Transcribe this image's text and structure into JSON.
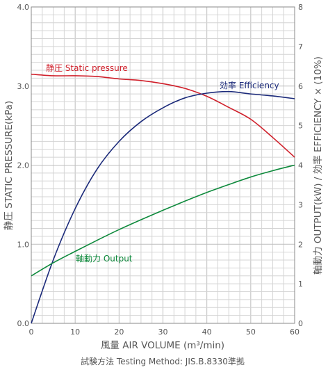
{
  "chart_data": {
    "type": "line",
    "xlabel": "風量 AIR VOLUME (m³/min)",
    "ylabel_left": "静圧 STATIC PRESSURE(kPa)",
    "ylabel_right": "軸動力 OUTPUT(kW) / 効率 EFFICIENCY × (10%)",
    "footnote": "試験方法 Testing Method: JIS.B.8330準拠",
    "xlim": [
      0,
      60
    ],
    "ylim_left": [
      0,
      4
    ],
    "ylim_right": [
      0,
      8
    ],
    "x_ticks": [
      "0",
      "10",
      "20",
      "30",
      "40",
      "50",
      "60"
    ],
    "y_left_ticks": [
      "0.0",
      "1.0",
      "2.0",
      "3.0",
      "4.0"
    ],
    "y_right_ticks": [
      "0",
      "1",
      "2",
      "3",
      "4",
      "5",
      "6",
      "7",
      "8"
    ],
    "grid": true,
    "series": [
      {
        "name": "静圧 Static pressure",
        "axis": "left",
        "color": "#d0202b",
        "x": [
          0,
          5,
          10,
          15,
          20,
          25,
          30,
          35,
          40,
          45,
          50,
          55,
          60
        ],
        "y": [
          3.15,
          3.13,
          3.13,
          3.12,
          3.09,
          3.07,
          3.03,
          2.97,
          2.87,
          2.73,
          2.58,
          2.35,
          2.1
        ]
      },
      {
        "name": "効率 Efficiency",
        "axis": "right",
        "color": "#1b2a7a",
        "x": [
          0,
          5,
          10,
          15,
          20,
          25,
          30,
          35,
          40,
          45,
          50,
          55,
          60
        ],
        "y": [
          0,
          1.6,
          2.9,
          3.9,
          4.6,
          5.1,
          5.45,
          5.7,
          5.82,
          5.86,
          5.8,
          5.75,
          5.68
        ]
      },
      {
        "name": "軸動力 Output",
        "axis": "right",
        "color": "#0e8a3c",
        "x": [
          0,
          5,
          10,
          15,
          20,
          25,
          30,
          35,
          40,
          45,
          50,
          55,
          60
        ],
        "y": [
          1.2,
          1.53,
          1.82,
          2.1,
          2.37,
          2.62,
          2.86,
          3.09,
          3.31,
          3.51,
          3.7,
          3.86,
          4.0
        ]
      }
    ]
  }
}
